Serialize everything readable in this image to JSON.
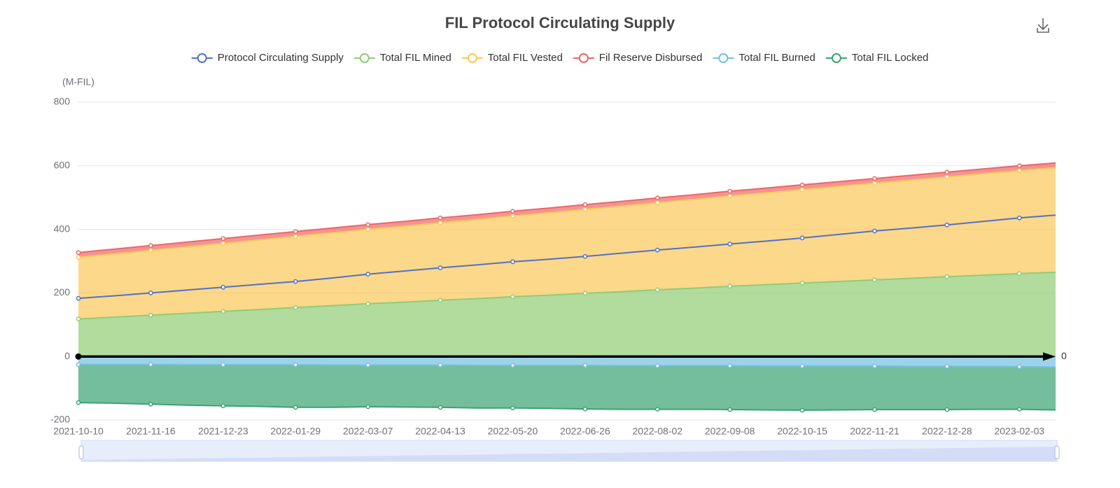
{
  "chart_data": {
    "type": "area",
    "title": "FIL Protocol Circulating Supply",
    "y_unit": "(M-FIL)",
    "categories": [
      "2021-10-10",
      null,
      "2021-11-16",
      null,
      "2021-12-23",
      null,
      "2022-01-29",
      null,
      "2022-03-07",
      null,
      "2022-04-13",
      null,
      "2022-05-20",
      null,
      "2022-06-26",
      null,
      "2022-08-02",
      null,
      "2022-09-08",
      null,
      "2022-10-15",
      null,
      "2022-11-21",
      null,
      "2022-12-28",
      null,
      "2023-02-03",
      null
    ],
    "series": [
      {
        "name": "Protocol Circulating Supply",
        "color": "#5470c6",
        "stacked": false,
        "values": [
          183,
          191,
          200,
          209,
          218,
          227,
          236,
          247,
          259,
          269,
          279,
          288,
          298,
          306,
          315,
          325,
          335,
          344,
          354,
          363,
          373,
          384,
          395,
          404,
          414,
          425,
          436,
          445
        ]
      },
      {
        "name": "Total FIL Mined",
        "color": "#91cc75",
        "stacked": true,
        "values": [
          118,
          124,
          130,
          136,
          142,
          148,
          154,
          160,
          166,
          171,
          177,
          182,
          188,
          193,
          199,
          204,
          210,
          215,
          221,
          226,
          231,
          236,
          241,
          246,
          251,
          256,
          261,
          265
        ]
      },
      {
        "name": "Total FIL Vested",
        "color": "#fac858",
        "stacked": true,
        "values": [
          194,
          199,
          204,
          209,
          214,
          219,
          224,
          229,
          234,
          239,
          244,
          249,
          254,
          259,
          264,
          269,
          274,
          279,
          284,
          289,
          294,
          299,
          304,
          309,
          314,
          319,
          324,
          329
        ]
      },
      {
        "name": "Fil Reserve Disbursed",
        "color": "#ee6666",
        "stacked": true,
        "values": [
          15,
          15,
          15,
          15,
          15,
          15,
          15,
          15,
          15,
          15,
          15,
          15,
          15,
          15,
          15,
          15,
          15,
          15,
          15,
          15,
          15,
          15,
          15,
          15,
          15,
          15,
          15,
          15
        ]
      },
      {
        "name": "Total FIL Burned",
        "color": "#73c0de",
        "stacked": true,
        "values": [
          -25,
          -25,
          -25,
          -26,
          -26,
          -26,
          -26,
          -27,
          -27,
          -27,
          -27,
          -28,
          -28,
          -28,
          -28,
          -29,
          -29,
          -29,
          -29,
          -30,
          -30,
          -30,
          -30,
          -31,
          -31,
          -31,
          -32,
          -33
        ]
      },
      {
        "name": "Total FIL Locked",
        "color": "#3ba272",
        "stacked": true,
        "values": [
          -120,
          -122,
          -125,
          -127,
          -129,
          -131,
          -134,
          -133,
          -131,
          -132,
          -133,
          -134,
          -134,
          -135,
          -137,
          -137,
          -137,
          -137,
          -138,
          -138,
          -139,
          -138,
          -137,
          -136,
          -136,
          -135,
          -134,
          -135
        ]
      }
    ],
    "ylim": [
      -200,
      800
    ],
    "yticks": [
      -200,
      0,
      200,
      400,
      600,
      800
    ],
    "grid": true,
    "mark_line": 0
  }
}
